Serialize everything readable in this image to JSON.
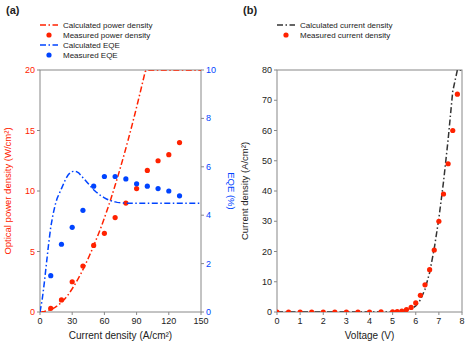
{
  "chart_data": [
    {
      "type": "line",
      "title": "(a)",
      "xlabel": "Current density (A/cm²)",
      "ylabel": "Optical power density (W/cm²)",
      "y2label": "EQE (%)",
      "xlim": [
        0,
        150
      ],
      "ylim": [
        0,
        20
      ],
      "y2lim": [
        0,
        10
      ],
      "xticks": [
        0,
        30,
        60,
        90,
        120,
        150
      ],
      "yticks": [
        0,
        5,
        10,
        15,
        20
      ],
      "y2ticks": [
        0,
        2,
        4,
        6,
        8,
        10
      ],
      "grid": false,
      "legend": "top",
      "series": [
        {
          "name": "Calculated power density",
          "type": "line",
          "line_style": "dashdot",
          "color": "#ff2200",
          "x": [
            0,
            2,
            4,
            6,
            8,
            10,
            12,
            14,
            16,
            18,
            20,
            22,
            24,
            26,
            28,
            30,
            32,
            34,
            36,
            38,
            40,
            42,
            44,
            46,
            48,
            50,
            52,
            54,
            56,
            58,
            60,
            62,
            64,
            66,
            68,
            70,
            72,
            74,
            76,
            78,
            80,
            82,
            84,
            86,
            88,
            90,
            92,
            94,
            96,
            98,
            100,
            105,
            110,
            115,
            120,
            125,
            130,
            135,
            140,
            145,
            150
          ],
          "values": [
            0,
            0.02,
            0.05,
            0.09,
            0.14,
            0.2,
            0.28,
            0.38,
            0.5,
            0.64,
            0.8,
            0.98,
            1.18,
            1.4,
            1.65,
            1.92,
            2.2,
            2.5,
            2.82,
            3.15,
            3.5,
            3.87,
            4.25,
            4.65,
            5.05,
            5.47,
            5.9,
            6.35,
            6.8,
            7.28,
            7.77,
            8.28,
            8.8,
            9.34,
            9.9,
            10.47,
            11.05,
            11.65,
            12.26,
            12.89,
            13.53,
            14.18,
            14.85,
            15.53,
            16.22,
            16.93,
            17.65,
            18.38,
            19.12,
            19.87,
            20.0,
            20.0,
            20.0,
            20.0,
            20.0,
            20.0,
            20.0,
            20.0,
            20.0,
            20.0,
            20.0
          ]
        },
        {
          "name": "Measured power density",
          "type": "scatter",
          "marker": "circle",
          "color": "#ff2200",
          "x": [
            10,
            20,
            30,
            40,
            50,
            60,
            70,
            80,
            90,
            100,
            110,
            120,
            130
          ],
          "values": [
            0.3,
            1.0,
            2.5,
            3.8,
            5.5,
            6.5,
            7.8,
            9.0,
            10.2,
            11.7,
            12.5,
            13.0,
            14.0
          ]
        },
        {
          "name": "Calculated EQE",
          "type": "line",
          "line_style": "dashdot",
          "color": "#0044ff",
          "axis": "y2",
          "x": [
            0,
            2,
            4,
            6,
            8,
            10,
            12,
            14,
            16,
            18,
            20,
            22,
            24,
            26,
            28,
            30,
            32,
            34,
            36,
            38,
            40,
            42,
            44,
            46,
            48,
            50,
            52,
            54,
            56,
            58,
            60,
            62,
            64,
            66,
            68,
            70,
            72,
            74,
            76,
            78,
            80,
            82,
            84,
            86,
            88,
            90,
            92,
            94,
            96,
            98,
            100,
            110,
            120,
            130,
            140,
            150
          ],
          "values": [
            0,
            0.5,
            1.2,
            2.0,
            2.8,
            3.5,
            4.0,
            4.4,
            4.7,
            4.9,
            5.1,
            5.3,
            5.5,
            5.65,
            5.75,
            5.8,
            5.82,
            5.8,
            5.75,
            5.65,
            5.55,
            5.45,
            5.35,
            5.25,
            5.15,
            5.05,
            4.97,
            4.9,
            4.83,
            4.77,
            4.72,
            4.67,
            4.63,
            4.6,
            4.57,
            4.55,
            4.53,
            4.52,
            4.51,
            4.5,
            4.5,
            4.49,
            4.49,
            4.49,
            4.49,
            4.49,
            4.49,
            4.49,
            4.49,
            4.49,
            4.49,
            4.49,
            4.49,
            4.49,
            4.49,
            4.49
          ]
        },
        {
          "name": "Measured EQE",
          "type": "scatter",
          "marker": "circle",
          "color": "#0044ff",
          "axis": "y2",
          "x": [
            10,
            20,
            30,
            40,
            50,
            60,
            70,
            80,
            90,
            100,
            110,
            120,
            130
          ],
          "values": [
            1.5,
            2.8,
            3.5,
            4.2,
            5.2,
            5.6,
            5.6,
            5.5,
            5.3,
            5.2,
            5.1,
            5.0,
            4.8
          ]
        }
      ]
    },
    {
      "type": "line",
      "title": "(b)",
      "xlabel": "Voltage (V)",
      "ylabel": "Current density (A/cm²)",
      "xlim": [
        0,
        8
      ],
      "ylim": [
        0,
        80
      ],
      "xticks": [
        0,
        1,
        2,
        3,
        4,
        5,
        6,
        7,
        8
      ],
      "yticks": [
        0,
        10,
        20,
        30,
        40,
        50,
        60,
        70,
        80
      ],
      "grid": false,
      "legend": "top",
      "series": [
        {
          "name": "Calculated current density",
          "type": "line",
          "line_style": "dashdot",
          "color": "#333333",
          "x": [
            0,
            0.5,
            1.0,
            1.5,
            2.0,
            2.5,
            3.0,
            3.5,
            4.0,
            4.5,
            4.8,
            5.0,
            5.2,
            5.4,
            5.6,
            5.8,
            6.0,
            6.2,
            6.4,
            6.6,
            6.8,
            7.0,
            7.2,
            7.4,
            7.6,
            7.8,
            8.0
          ],
          "values": [
            0,
            0.0,
            0.0,
            0.0,
            0.0,
            0.0,
            0.0,
            0.0,
            0.0,
            0.01,
            0.02,
            0.05,
            0.1,
            0.2,
            0.5,
            1.0,
            2.0,
            4.0,
            7.5,
            13.0,
            21.0,
            31.0,
            43.0,
            57.0,
            73.0,
            80.0,
            80.0
          ]
        },
        {
          "name": "Measured current density",
          "type": "scatter",
          "marker": "circle",
          "color": "#ff2200",
          "x": [
            0,
            0.5,
            1.0,
            1.5,
            2.0,
            2.5,
            3.0,
            3.5,
            4.0,
            4.5,
            5.0,
            5.2,
            5.4,
            5.6,
            5.8,
            6.0,
            6.2,
            6.4,
            6.6,
            6.8,
            7.0,
            7.2,
            7.4,
            7.6,
            7.8
          ],
          "values": [
            0,
            0.0,
            0.0,
            0.0,
            0.0,
            0.0,
            0.0,
            0.0,
            0.0,
            0.01,
            0.05,
            0.1,
            0.3,
            0.8,
            1.5,
            3.0,
            5.5,
            9.0,
            14.0,
            20.5,
            30.0,
            39.0,
            49.0,
            60.0,
            72.0
          ]
        }
      ]
    }
  ]
}
